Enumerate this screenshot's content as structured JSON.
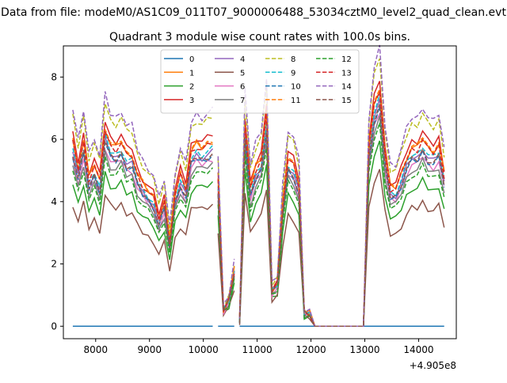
{
  "figure": {
    "supertitle": "Data from file: modeM0/AS1C09_011T07_9000006488_53034cztM0_level2_quad_clean.evt",
    "title": "Quadrant 3 module wise count rates with 100.0s bins."
  },
  "chart_data": {
    "type": "line",
    "title": "Quadrant 3 module wise count rates with 100.0s bins.",
    "xlabel": "",
    "ylabel": "",
    "x_offset_label": "+4.905e8",
    "xlim": [
      7400,
      14700
    ],
    "ylim": [
      -0.4,
      9.0
    ],
    "xticks": [
      8000,
      9000,
      10000,
      11000,
      12000,
      13000,
      14000
    ],
    "yticks": [
      0,
      2,
      4,
      6,
      8
    ],
    "grid": false,
    "legend": {
      "placement": "top-center",
      "columns": 4
    },
    "colors": [
      "#1f77b4",
      "#ff7f0e",
      "#2ca02c",
      "#d62728",
      "#9467bd",
      "#8c564b",
      "#e377c2",
      "#7f7f7f",
      "#bcbd22",
      "#17becf",
      "#1f77b4",
      "#ff7f0e",
      "#2ca02c",
      "#d62728",
      "#9467bd",
      "#8c564b"
    ],
    "series": [
      {
        "name": "0",
        "style": "solid"
      },
      {
        "name": "1",
        "style": "solid"
      },
      {
        "name": "2",
        "style": "solid"
      },
      {
        "name": "3",
        "style": "solid"
      },
      {
        "name": "4",
        "style": "solid"
      },
      {
        "name": "5",
        "style": "solid"
      },
      {
        "name": "6",
        "style": "solid"
      },
      {
        "name": "7",
        "style": "solid"
      },
      {
        "name": "8",
        "style": "dashed"
      },
      {
        "name": "9",
        "style": "dashed"
      },
      {
        "name": "10",
        "style": "dashed"
      },
      {
        "name": "11",
        "style": "dashed"
      },
      {
        "name": "12",
        "style": "dashed"
      },
      {
        "name": "13",
        "style": "dashed"
      },
      {
        "name": "14",
        "style": "dashed"
      },
      {
        "name": "15",
        "style": "dashed"
      }
    ],
    "segments": [
      {
        "x": [
          7575,
          7675,
          7775,
          7875,
          7975,
          8075,
          8175,
          8275,
          8375,
          8475,
          8575,
          8675,
          8775,
          8875,
          8975,
          9075,
          9175,
          9275,
          9375,
          9475,
          9575,
          9675,
          9775,
          9875,
          9975,
          10075,
          10175
        ],
        "base": [
          5.6,
          4.8,
          5.6,
          4.5,
          4.9,
          4.4,
          6.0,
          5.5,
          5.4,
          5.6,
          5.2,
          5.2,
          4.6,
          4.3,
          4.1,
          3.9,
          3.3,
          3.8,
          2.6,
          4.0,
          4.6,
          4.2,
          5.3,
          5.5,
          5.4,
          5.5,
          5.6
        ]
      },
      {
        "x": [
          10275,
          10375,
          10475,
          10575
        ],
        "base": [
          4.4,
          0.5,
          0.8,
          1.7
        ]
      },
      {
        "x": [
          10675,
          10775,
          10875,
          10975,
          11075,
          11175,
          11275,
          11375,
          11475,
          11575,
          11675,
          11775,
          11875,
          11975,
          12075,
          12175,
          12275,
          12375,
          12475,
          12575,
          12675,
          12775,
          12875,
          12975,
          13075,
          13175,
          13275,
          13375,
          13475,
          13575,
          13675,
          13775,
          13875,
          13975,
          14075,
          14175,
          14275,
          14375,
          14475
        ],
        "base": [
          0.2,
          6.1,
          4.2,
          4.8,
          5.1,
          6.4,
          1.1,
          1.3,
          3.7,
          5.1,
          4.9,
          4.3,
          0.4,
          0.4,
          0.0,
          0.0,
          0.0,
          0.0,
          0.0,
          0.0,
          0.0,
          0.0,
          0.0,
          0.0,
          5.4,
          6.7,
          7.2,
          5.2,
          4.2,
          4.2,
          4.6,
          5.1,
          5.4,
          5.4,
          5.7,
          5.4,
          5.3,
          5.5,
          4.6
        ]
      }
    ],
    "module_scale": [
      0.0,
      1.06,
      0.82,
      1.1,
      1.0,
      0.7,
      0.96,
      0.93,
      1.2,
      1.02,
      0.98,
      1.07,
      0.9,
      1.05,
      1.24,
      0.99
    ]
  }
}
